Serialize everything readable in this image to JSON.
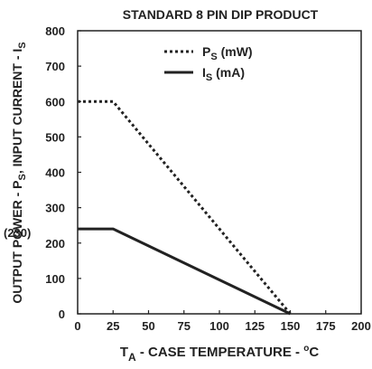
{
  "chart_data": {
    "type": "line",
    "title": "STANDARD 8 PIN DIP PRODUCT",
    "xlabel": {
      "main": "T",
      "sub": "A",
      "rest": " -  CASE TEMPERATURE  - ",
      "sup": "o",
      "unit": "C"
    },
    "ylabel": {
      "pre": "OUTPUT POWER  -  P",
      "sub1": "S",
      "mid": ", INPUT CURRENT  -  I",
      "sub2": "S"
    },
    "xlim": [
      0,
      200
    ],
    "ylim": [
      0,
      800
    ],
    "xticks": [
      "0",
      "25",
      "50",
      "75",
      "100",
      "125",
      "150",
      "175",
      "200"
    ],
    "yticks": [
      "0",
      "100",
      "200",
      "300",
      "400",
      "500",
      "600",
      "700",
      "800"
    ],
    "extra_ytick": {
      "label": "(230)",
      "value": 230
    },
    "grid": false,
    "legend_position": "top-center",
    "series": [
      {
        "name": "P",
        "name_sub": "S",
        "name_unit": " (mW)",
        "style": "dotted",
        "color": "#222222",
        "x": [
          0,
          25,
          150
        ],
        "y": [
          600,
          600,
          0
        ]
      },
      {
        "name": "I",
        "name_sub": "S",
        "name_unit": " (mA)",
        "style": "solid",
        "color": "#222222",
        "x": [
          0,
          25,
          150
        ],
        "y": [
          240,
          240,
          0
        ]
      }
    ]
  }
}
